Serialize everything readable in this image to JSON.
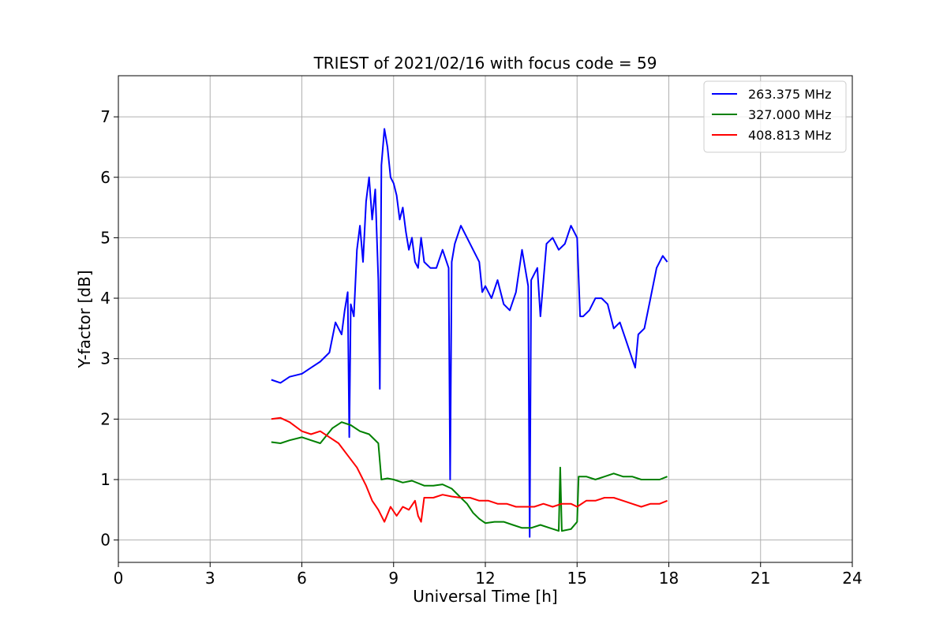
{
  "chart_data": {
    "type": "line",
    "title": "TRIEST of 2021/02/16 with focus code = 59",
    "xlabel": "Universal Time [h]",
    "ylabel": "Y-factor [dB]",
    "xlim": [
      0,
      24
    ],
    "ylim": [
      -0.37,
      7.68
    ],
    "xticks": [
      0,
      3,
      6,
      9,
      12,
      15,
      18,
      21,
      24
    ],
    "yticks": [
      0,
      1,
      2,
      3,
      4,
      5,
      6,
      7
    ],
    "grid": true,
    "legend_position": "top-right",
    "series": [
      {
        "name": "263.375 MHz",
        "color": "#0000ff",
        "x": [
          5.0,
          5.3,
          5.6,
          6.0,
          6.3,
          6.6,
          6.9,
          7.1,
          7.2,
          7.3,
          7.4,
          7.5,
          7.55,
          7.6,
          7.7,
          7.8,
          7.9,
          8.0,
          8.1,
          8.2,
          8.3,
          8.4,
          8.5,
          8.55,
          8.6,
          8.7,
          8.8,
          8.9,
          9.0,
          9.1,
          9.2,
          9.3,
          9.4,
          9.5,
          9.6,
          9.7,
          9.8,
          9.9,
          10.0,
          10.2,
          10.4,
          10.6,
          10.8,
          10.85,
          10.9,
          11.0,
          11.2,
          11.4,
          11.6,
          11.8,
          11.9,
          12.0,
          12.2,
          12.4,
          12.6,
          12.8,
          13.0,
          13.2,
          13.4,
          13.45,
          13.5,
          13.7,
          13.8,
          14.0,
          14.2,
          14.4,
          14.6,
          14.8,
          15.0,
          15.1,
          15.2,
          15.4,
          15.6,
          15.8,
          16.0,
          16.2,
          16.4,
          16.6,
          16.8,
          16.9,
          17.0,
          17.2,
          17.4,
          17.6,
          17.8,
          17.95
        ],
        "y": [
          2.65,
          2.6,
          2.7,
          2.75,
          2.85,
          2.95,
          3.1,
          3.6,
          3.5,
          3.4,
          3.8,
          4.1,
          1.7,
          3.9,
          3.7,
          4.8,
          5.2,
          4.6,
          5.6,
          6.0,
          5.3,
          5.8,
          4.3,
          2.5,
          6.2,
          6.8,
          6.5,
          6.0,
          5.9,
          5.7,
          5.3,
          5.5,
          5.1,
          4.8,
          5.0,
          4.6,
          4.5,
          5.0,
          4.6,
          4.5,
          4.5,
          4.8,
          4.5,
          1.0,
          4.6,
          4.9,
          5.2,
          5.0,
          4.8,
          4.6,
          4.1,
          4.2,
          4.0,
          4.3,
          3.9,
          3.8,
          4.1,
          4.8,
          4.2,
          0.05,
          4.3,
          4.5,
          3.7,
          4.9,
          5.0,
          4.8,
          4.9,
          5.2,
          5.0,
          3.7,
          3.7,
          3.8,
          4.0,
          4.0,
          3.9,
          3.5,
          3.6,
          3.3,
          3.0,
          2.85,
          3.4,
          3.5,
          4.0,
          4.5,
          4.7,
          4.6
        ]
      },
      {
        "name": "327.000 MHz",
        "color": "#008000",
        "x": [
          5.0,
          5.3,
          5.6,
          6.0,
          6.3,
          6.6,
          7.0,
          7.3,
          7.6,
          7.9,
          8.2,
          8.5,
          8.6,
          8.8,
          9.0,
          9.3,
          9.6,
          10.0,
          10.3,
          10.6,
          10.9,
          11.2,
          11.4,
          11.6,
          11.8,
          12.0,
          12.3,
          12.6,
          12.9,
          13.2,
          13.5,
          13.8,
          14.1,
          14.4,
          14.45,
          14.5,
          14.8,
          15.0,
          15.05,
          15.3,
          15.6,
          15.9,
          16.2,
          16.5,
          16.8,
          17.1,
          17.4,
          17.7,
          17.95
        ],
        "y": [
          1.62,
          1.6,
          1.65,
          1.7,
          1.65,
          1.6,
          1.85,
          1.95,
          1.9,
          1.8,
          1.75,
          1.6,
          1.0,
          1.02,
          1.0,
          0.95,
          0.98,
          0.9,
          0.9,
          0.92,
          0.85,
          0.7,
          0.6,
          0.45,
          0.35,
          0.28,
          0.3,
          0.3,
          0.25,
          0.2,
          0.2,
          0.25,
          0.2,
          0.15,
          1.2,
          0.15,
          0.18,
          0.3,
          1.05,
          1.05,
          1.0,
          1.05,
          1.1,
          1.05,
          1.05,
          1.0,
          1.0,
          1.0,
          1.05
        ]
      },
      {
        "name": "408.813 MHz",
        "color": "#ff0000",
        "x": [
          5.0,
          5.3,
          5.6,
          6.0,
          6.3,
          6.6,
          6.9,
          7.2,
          7.5,
          7.8,
          8.1,
          8.3,
          8.5,
          8.7,
          8.9,
          9.1,
          9.3,
          9.5,
          9.7,
          9.8,
          9.9,
          10.0,
          10.3,
          10.6,
          10.9,
          11.2,
          11.5,
          11.8,
          12.1,
          12.4,
          12.7,
          13.0,
          13.3,
          13.6,
          13.9,
          14.2,
          14.5,
          14.8,
          15.0,
          15.3,
          15.6,
          15.9,
          16.2,
          16.5,
          16.8,
          17.1,
          17.4,
          17.7,
          17.95
        ],
        "y": [
          2.0,
          2.02,
          1.95,
          1.8,
          1.75,
          1.8,
          1.7,
          1.6,
          1.4,
          1.2,
          0.9,
          0.65,
          0.5,
          0.3,
          0.55,
          0.4,
          0.55,
          0.5,
          0.65,
          0.4,
          0.3,
          0.7,
          0.7,
          0.75,
          0.72,
          0.7,
          0.7,
          0.65,
          0.65,
          0.6,
          0.6,
          0.55,
          0.55,
          0.55,
          0.6,
          0.55,
          0.6,
          0.6,
          0.55,
          0.65,
          0.65,
          0.7,
          0.7,
          0.65,
          0.6,
          0.55,
          0.6,
          0.6,
          0.65
        ]
      }
    ]
  }
}
